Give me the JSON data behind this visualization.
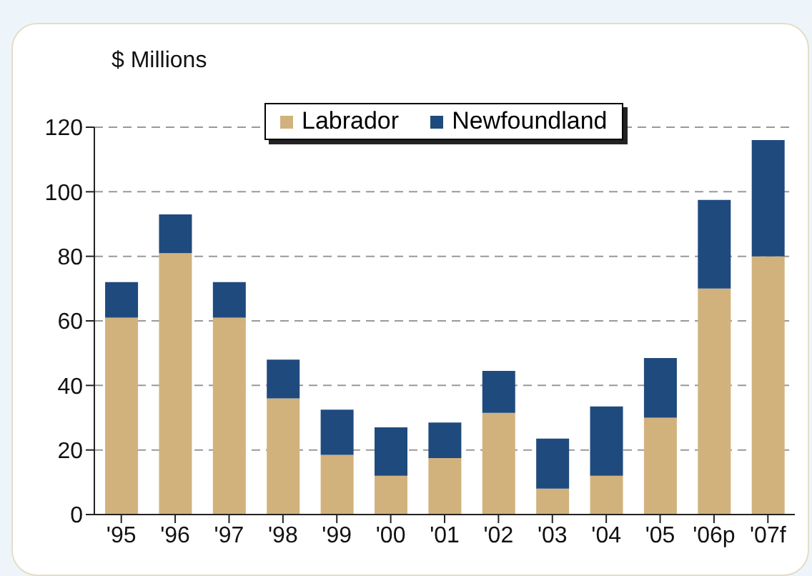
{
  "chart_data": {
    "type": "bar",
    "ylabel": "$ Millions",
    "categories": [
      "'95",
      "'96",
      "'97",
      "'98",
      "'99",
      "'00",
      "'01",
      "'02",
      "'03",
      "'04",
      "'05",
      "'06p",
      "'07f"
    ],
    "series": [
      {
        "name": "Labrador",
        "color": "#d2b27c",
        "values": [
          61,
          81,
          61,
          36,
          18.5,
          12,
          17.5,
          31.5,
          8,
          12,
          30,
          70,
          80
        ]
      },
      {
        "name": "Newfoundland",
        "color": "#1f4a7e",
        "values": [
          11,
          12,
          11,
          12,
          14,
          15,
          11,
          13,
          15.5,
          21.5,
          18.5,
          27.5,
          36
        ]
      }
    ],
    "stacked": true,
    "ylim": [
      0,
      120
    ],
    "yticks": [
      0,
      20,
      40,
      60,
      80,
      100,
      120
    ],
    "grid": "y",
    "legend": "top"
  }
}
